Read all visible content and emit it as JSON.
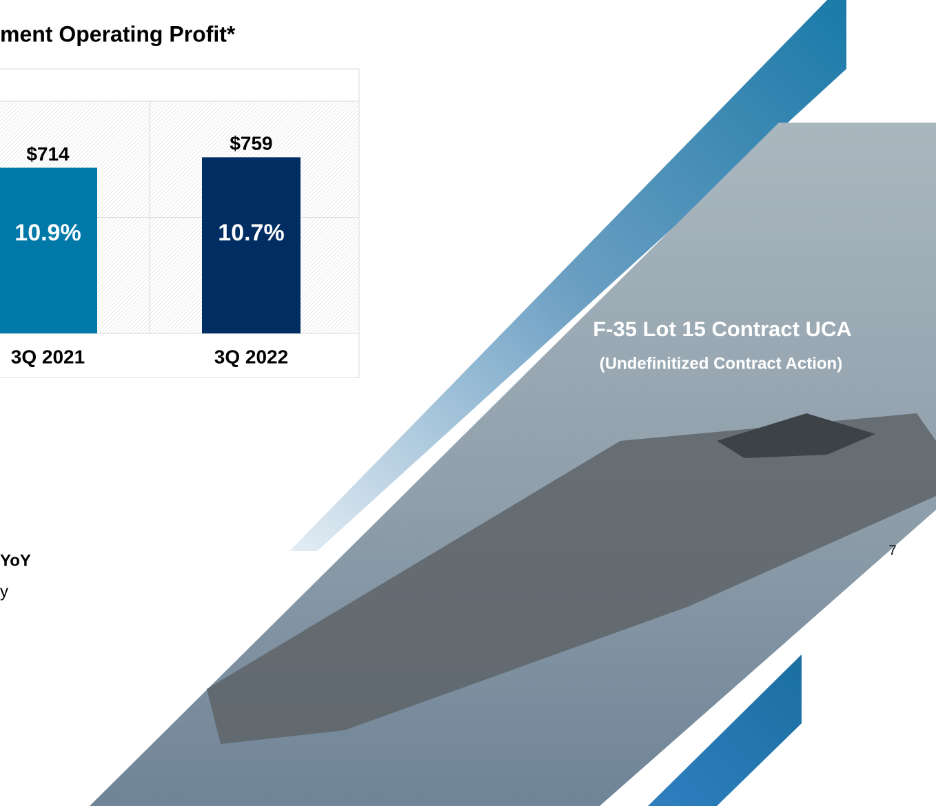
{
  "chart_data": {
    "type": "bar",
    "title": "ment Operating Profit*",
    "categories": [
      "3Q 2021",
      "3Q 2022"
    ],
    "values": [
      714,
      759
    ],
    "value_labels": [
      "$714",
      "$759"
    ],
    "margins": [
      10.9,
      10.7
    ],
    "margin_labels": [
      "10.9%",
      "10.7%"
    ],
    "colors": [
      "#0079a8",
      "#002e63"
    ],
    "ylim": [
      0,
      1140
    ],
    "yticks": [
      0,
      500,
      1000
    ],
    "grid": true
  },
  "slide": {
    "caption_title": "F-35 Lot 15 Contract UCA",
    "caption_subtitle": "(Undefinitized Contract Action)",
    "text_fragment_1": "YoY",
    "text_fragment_2": "y",
    "page_number": "7"
  }
}
